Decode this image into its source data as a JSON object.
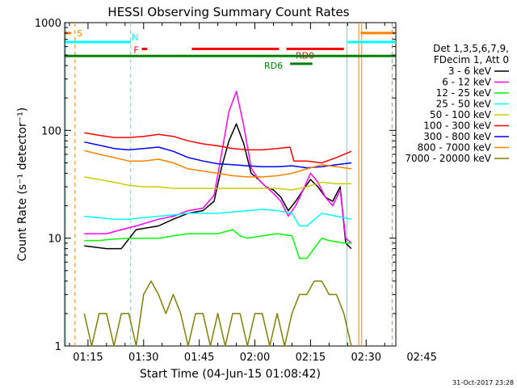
{
  "chart_data": {
    "type": "line",
    "title": "HESSI Observing Summary Count Rates",
    "xlabel": "Start Time (04-Jun-15 01:08:42)",
    "ylabel": "Count Rate (s⁻¹ detector⁻¹)",
    "y_scale": "log",
    "ylim": [
      1,
      1000
    ],
    "xlim": [
      8.7,
      98.0
    ],
    "x_unit": "minutes after 01:00",
    "x_ticks": [
      {
        "v": 15,
        "label": "01:15"
      },
      {
        "v": 30,
        "label": "01:30"
      },
      {
        "v": 45,
        "label": "01:45"
      },
      {
        "v": 60,
        "label": "02:00"
      },
      {
        "v": 75,
        "label": "02:15"
      },
      {
        "v": 90,
        "label": "02:30"
      },
      {
        "v": 105,
        "label": "02:45"
      }
    ],
    "y_ticks": [
      {
        "v": 1,
        "label": "1"
      },
      {
        "v": 10,
        "label": "10"
      },
      {
        "v": 100,
        "label": "100"
      },
      {
        "v": 1000,
        "label": "1000"
      }
    ],
    "legend_header": [
      "Det 1,3,5,6,7,9,",
      "FDecim 1, Att 0"
    ],
    "legend_position": "right",
    "timestamp": "31-Oct-2017 23:28",
    "series": [
      {
        "name": "3 - 6 keV",
        "color": "#000000",
        "x": [
          14,
          20,
          24,
          28,
          34,
          38,
          42,
          46,
          49,
          51,
          53,
          55,
          57,
          59,
          61,
          63,
          65,
          67,
          69,
          71,
          73,
          75,
          77,
          79,
          81,
          83,
          84.5,
          86
        ],
        "y": [
          8.5,
          8,
          8,
          12,
          13,
          15,
          17,
          18,
          22,
          45,
          80,
          115,
          75,
          40,
          35,
          30,
          28,
          24,
          18,
          22,
          28,
          35,
          30,
          24,
          22,
          30,
          9,
          8
        ]
      },
      {
        "name": "6 - 12 keV",
        "color": "#ff00ff",
        "x": [
          14,
          20,
          24,
          28,
          34,
          38,
          42,
          46,
          49,
          51,
          53,
          55,
          57,
          59,
          61,
          63,
          65,
          67,
          69,
          71,
          73,
          75,
          77,
          79,
          81,
          83,
          84.5,
          86
        ],
        "y": [
          11,
          11,
          12,
          13,
          15,
          16,
          18,
          19,
          25,
          60,
          150,
          230,
          110,
          45,
          35,
          30,
          26,
          22,
          16,
          20,
          28,
          40,
          33,
          24,
          20,
          28,
          10,
          9
        ]
      },
      {
        "name": "12 - 25 keV",
        "color": "#00ff00",
        "x": [
          14,
          18,
          22,
          26,
          30,
          34,
          38,
          42,
          46,
          50,
          54,
          56,
          58,
          62,
          66,
          70,
          72,
          74,
          78,
          80,
          84,
          86
        ],
        "y": [
          9.5,
          9.5,
          9.8,
          10,
          10,
          10,
          10.5,
          11,
          11,
          11,
          12,
          10.5,
          10,
          10.5,
          11,
          10.5,
          6.5,
          6.5,
          10,
          9.5,
          9,
          9
        ]
      },
      {
        "name": "25 - 50 keV",
        "color": "#00ffff",
        "x": [
          14,
          18,
          22,
          26,
          30,
          34,
          38,
          42,
          46,
          50,
          54,
          58,
          62,
          66,
          70,
          72,
          74,
          78,
          82,
          86
        ],
        "y": [
          16,
          15.5,
          15,
          15,
          15.5,
          16,
          16.5,
          17,
          17,
          17,
          17.5,
          18,
          18.5,
          18,
          17,
          13,
          13,
          17,
          16,
          15
        ]
      },
      {
        "name": "50 - 100 keV",
        "color": "#cccc00",
        "x": [
          14,
          18,
          22,
          26,
          30,
          34,
          38,
          42,
          46,
          50,
          54,
          58,
          62,
          66,
          70,
          74,
          78,
          82,
          86
        ],
        "y": [
          37,
          35,
          33,
          31,
          30,
          30,
          29,
          29,
          29,
          29,
          29,
          29,
          29,
          29,
          28,
          30,
          33,
          32,
          32
        ]
      },
      {
        "name": "100 - 300 keV",
        "color": "#ff0000",
        "x": [
          14,
          18,
          22,
          26,
          30,
          34,
          38,
          42,
          46,
          50,
          54,
          58,
          62,
          66,
          69.5,
          70.5,
          74,
          78,
          82,
          86
        ],
        "y": [
          95,
          90,
          86,
          86,
          88,
          92,
          88,
          80,
          75,
          72,
          68,
          66,
          66,
          68,
          70,
          52,
          52,
          50,
          56,
          64
        ]
      },
      {
        "name": "300 - 800 keV",
        "color": "#0000ff",
        "x": [
          14,
          18,
          22,
          26,
          30,
          34,
          38,
          42,
          46,
          50,
          54,
          58,
          62,
          66,
          70,
          74,
          78,
          82,
          86
        ],
        "y": [
          78,
          73,
          68,
          66,
          68,
          70,
          64,
          56,
          52,
          49,
          48,
          47,
          46,
          46,
          47,
          45,
          46,
          48,
          50
        ]
      },
      {
        "name": "800 - 7000 keV",
        "color": "#ff8000",
        "x": [
          14,
          18,
          22,
          26,
          30,
          34,
          38,
          42,
          46,
          50,
          54,
          58,
          62,
          66,
          70,
          74,
          78,
          82,
          86
        ],
        "y": [
          65,
          60,
          56,
          52,
          52,
          54,
          50,
          44,
          42,
          40,
          38,
          37,
          37,
          38,
          40,
          44,
          48,
          46,
          44
        ]
      },
      {
        "name": "7000 - 20000 keV",
        "color": "#808000",
        "x": [
          14,
          16,
          18,
          20,
          22,
          24,
          26,
          28,
          30,
          32,
          34,
          36,
          38,
          40,
          42,
          44,
          46,
          48,
          50,
          52,
          54,
          56,
          58,
          60,
          62,
          64,
          66,
          68,
          70,
          72,
          74,
          76,
          78,
          80,
          82,
          84,
          86
        ],
        "y": [
          2,
          1,
          2,
          2,
          1,
          2,
          2,
          1,
          3,
          4,
          3,
          2,
          3,
          2,
          1,
          2,
          2,
          1,
          2,
          1,
          2,
          2,
          1,
          2,
          2,
          1,
          2,
          1,
          2,
          3,
          3,
          4,
          4,
          3,
          3,
          2,
          1
        ]
      }
    ],
    "attenuator_states": [
      {
        "label": "S",
        "x": [
          8.8,
          10.5
        ],
        "color": "#ff8000",
        "level": 800
      },
      {
        "label": "N",
        "x": [
          8.8,
          26.5
        ],
        "color": "#00ffff",
        "level": 660
      },
      {
        "label": "F",
        "x": [
          29.5,
          31
        ],
        "color": "#ff0000",
        "level": 570
      },
      {
        "label": "",
        "x": [
          43,
          66.5
        ],
        "color": "#ff0000",
        "level": 570
      },
      {
        "label": "RD0",
        "x": [
          68.5,
          84
        ],
        "color": "#ff0000",
        "level": 570
      },
      {
        "label": "",
        "x": [
          8.8,
          98
        ],
        "color": "#008000",
        "level": 490
      },
      {
        "label": "RD6",
        "x": [
          69.5,
          75.5
        ],
        "color": "#008000",
        "level": 415
      },
      {
        "label": "",
        "x": [
          85,
          98
        ],
        "color": "#00ffff",
        "level": 660
      },
      {
        "label": "",
        "x": [
          88.5,
          98
        ],
        "color": "#ff8000",
        "level": 800
      }
    ],
    "vertical_markers": [
      {
        "x": 9.0,
        "color": "#00ffff",
        "style": "solid"
      },
      {
        "x": 11.5,
        "color": "#ff8000",
        "style": "dashed"
      },
      {
        "x": 26.5,
        "color": "#00ffff",
        "style": "dashed"
      },
      {
        "x": 84.8,
        "color": "#00ffff",
        "style": "solid"
      },
      {
        "x": 88.0,
        "color": "#ff8000",
        "style": "solid"
      },
      {
        "x": 88.8,
        "color": "#ff8000",
        "style": "solid"
      },
      {
        "x": 97.0,
        "color": "#ff8000",
        "style": "dashed"
      }
    ]
  }
}
